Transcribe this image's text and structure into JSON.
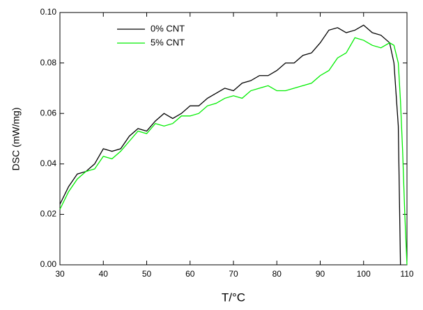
{
  "chart_data": {
    "type": "line",
    "xlabel": "T/°C",
    "ylabel": "DSC (mW/mg)",
    "x": [
      30,
      32,
      34,
      36,
      38,
      40,
      42,
      44,
      46,
      48,
      50,
      52,
      54,
      56,
      58,
      60,
      62,
      64,
      66,
      68,
      70,
      72,
      74,
      76,
      78,
      80,
      82,
      84,
      86,
      88,
      90,
      92,
      94,
      96,
      98,
      100,
      102,
      104,
      106,
      107,
      108,
      108.5,
      109,
      109.5,
      110
    ],
    "series": [
      {
        "name": "0% CNT",
        "color": "#000000",
        "values": [
          0.024,
          0.031,
          0.036,
          0.037,
          0.04,
          0.046,
          0.045,
          0.046,
          0.051,
          0.054,
          0.053,
          0.057,
          0.06,
          0.058,
          0.06,
          0.063,
          0.063,
          0.066,
          0.068,
          0.07,
          0.069,
          0.072,
          0.073,
          0.075,
          0.075,
          0.077,
          0.08,
          0.08,
          0.083,
          0.084,
          0.088,
          0.093,
          0.094,
          0.092,
          0.093,
          0.095,
          0.092,
          0.091,
          0.088,
          0.08,
          0.055,
          0,
          null,
          null,
          null
        ]
      },
      {
        "name": "5% CNT",
        "color": "#00ee00",
        "values": [
          0.022,
          0.029,
          0.034,
          0.037,
          0.038,
          0.043,
          0.042,
          0.045,
          0.049,
          0.053,
          0.052,
          0.056,
          0.055,
          0.056,
          0.059,
          0.059,
          0.06,
          0.063,
          0.064,
          0.066,
          0.067,
          0.066,
          0.069,
          0.07,
          0.071,
          0.069,
          0.069,
          0.07,
          0.071,
          0.072,
          0.075,
          0.077,
          0.082,
          0.084,
          0.09,
          0.089,
          0.087,
          0.086,
          0.088,
          0.087,
          0.08,
          0.065,
          0.045,
          0.02,
          0
        ]
      }
    ],
    "xlim": [
      30,
      110
    ],
    "xticks": [
      30,
      40,
      50,
      60,
      70,
      80,
      90,
      100,
      110
    ],
    "ylim": [
      0,
      0.1
    ],
    "yticks": [
      {
        "value": 0,
        "label": "0.00"
      },
      0.02,
      0.04,
      0.06,
      0.08,
      {
        "value": 0.1,
        "label": "0.10"
      }
    ],
    "legend": "upper-left",
    "grid": false
  }
}
